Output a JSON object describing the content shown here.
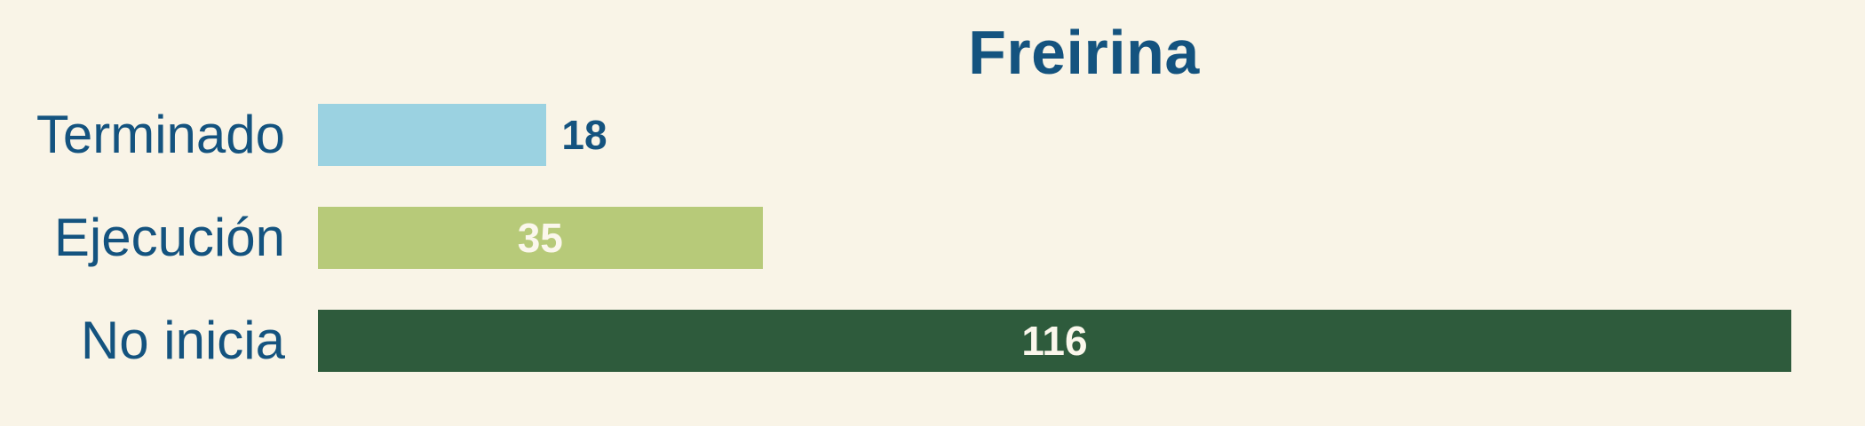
{
  "chart_data": {
    "type": "bar",
    "orientation": "horizontal",
    "title": "Freirina",
    "categories": [
      "Terminado",
      "Ejecución",
      "No inicia"
    ],
    "values": [
      18,
      35,
      116
    ],
    "series": [
      {
        "name": "Freirina",
        "values": [
          18,
          35,
          116
        ]
      }
    ],
    "bar_colors": [
      "#9bd2e1",
      "#b7ca79",
      "#2e5b3c"
    ],
    "value_label_positions": [
      "outside",
      "inside",
      "inside"
    ],
    "value_label_colors": [
      "#14537f",
      "#fbf7ec",
      "#fbf7ec"
    ],
    "xlim": [
      0,
      116
    ],
    "xlabel": "",
    "ylabel": "",
    "grid": false,
    "axes_visible": false,
    "legend": "none"
  },
  "colors": {
    "background": "#f9f4e7",
    "title_text": "#14537f",
    "category_text": "#14537f"
  }
}
